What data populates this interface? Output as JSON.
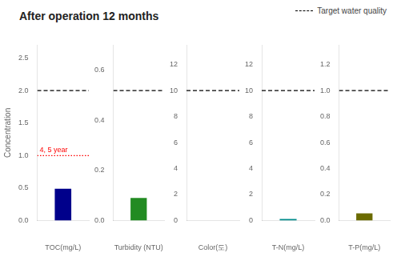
{
  "chart_data": [
    {
      "type": "bar",
      "title": "After operation 12 months",
      "y_label": "Concentration",
      "legend": "upper right",
      "x_label": "TOC(mg/L)",
      "categories": [
        null
      ],
      "values": [
        0.49
      ],
      "color": "#00008B",
      "ylim": [
        0,
        2.7
      ],
      "yticks": [
        {
          "value": 0.0,
          "label": "0.0"
        },
        0.5,
        {
          "value": 1.0,
          "label": "1.0"
        },
        1.5,
        {
          "value": 2.0,
          "label": "2.0"
        },
        2.5
      ],
      "grid": false,
      "target": {
        "name": "Target water quality",
        "y": 2.0,
        "line_style": "dashed",
        "color": "#000000"
      },
      "annotations": [
        {
          "text": "4, 5 year",
          "y": 1.0,
          "line_style": "dotted",
          "color": "#ff0000"
        }
      ]
    },
    {
      "type": "bar",
      "x_label": "Turbidity (NTU)",
      "categories": [
        null
      ],
      "values": [
        0.09
      ],
      "color": "#228B22",
      "ylim": [
        0,
        0.7
      ],
      "yticks": [
        {
          "value": 0.0,
          "label": "0.0"
        },
        0.2,
        0.4,
        0.6
      ],
      "grid": false,
      "target": {
        "name": "Target water quality",
        "y": 0.519,
        "line_style": "dashed",
        "color": "#000000"
      }
    },
    {
      "type": "bar",
      "x_label": "Color(도)",
      "categories": [
        null
      ],
      "values": [
        0.0
      ],
      "color": "#228B22",
      "ylim": [
        0,
        13.5
      ],
      "yticks": [
        0,
        2,
        4,
        6,
        8,
        10,
        12
      ],
      "grid": false,
      "target": {
        "name": "Target water quality",
        "y": 10.0,
        "line_style": "dashed",
        "color": "#000000"
      }
    },
    {
      "type": "bar",
      "x_label": "T-N(mg/L)",
      "categories": [
        null
      ],
      "values": [
        0.12
      ],
      "color": "#008B8B",
      "ylim": [
        0,
        13.5
      ],
      "yticks": [
        0,
        2,
        4,
        6,
        8,
        10,
        12
      ],
      "grid": false,
      "target": {
        "name": "Target water quality",
        "y": 10.0,
        "line_style": "dashed",
        "color": "#000000"
      }
    },
    {
      "type": "bar",
      "x_label": "T-P(mg/L)",
      "categories": [
        null
      ],
      "values": [
        0.055
      ],
      "color": "#6B6B00",
      "ylim": [
        0,
        1.35
      ],
      "yticks": [
        {
          "value": 0.0,
          "label": "0.0"
        },
        0.2,
        0.4,
        0.6,
        0.8,
        {
          "value": 1.0,
          "label": "1.0"
        },
        1.2
      ],
      "grid": false,
      "target": {
        "name": "Target water quality",
        "y": 1.0,
        "line_style": "dashed",
        "color": "#000000"
      }
    }
  ]
}
